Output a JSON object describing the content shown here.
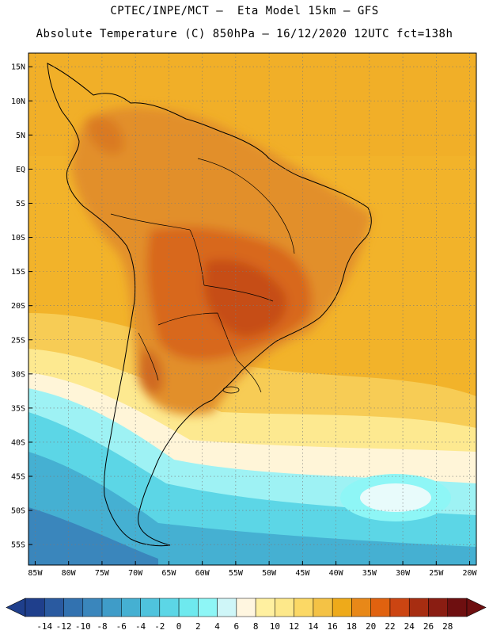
{
  "header": {
    "line1": "CPTEC/INPE/MCT —  Eta Model 15km — GFS",
    "line2": "Absolute Temperature (C) 850hPa — 16/12/2020 12UTC fct=138h"
  },
  "axes": {
    "lon_labels": [
      "85W",
      "80W",
      "75W",
      "70W",
      "65W",
      "60W",
      "55W",
      "50W",
      "45W",
      "40W",
      "35W",
      "30W",
      "25W",
      "20W"
    ],
    "lat_labels": [
      "15N",
      "10N",
      "5N",
      "EQ",
      "5S",
      "10S",
      "15S",
      "20S",
      "25S",
      "30S",
      "35S",
      "40S",
      "45S",
      "50S",
      "55S"
    ],
    "lon_range": [
      -86,
      -19
    ],
    "lat_range": [
      17,
      -58
    ]
  },
  "colorbar": {
    "labels": [
      "-14",
      "-12",
      "-10",
      "-8",
      "-6",
      "-4",
      "-2",
      "0",
      "2",
      "4",
      "6",
      "8",
      "10",
      "12",
      "14",
      "16",
      "18",
      "20",
      "22",
      "24",
      "26",
      "28"
    ],
    "colors": [
      "#1f3f8c",
      "#2a5aa0",
      "#3272b0",
      "#3a86bc",
      "#3f9cc8",
      "#45b0d2",
      "#4fc3dd",
      "#5cd6e6",
      "#6ee9ee",
      "#8ef6f6",
      "#cff6f8",
      "#fff6e0",
      "#fff0a0",
      "#fde88a",
      "#fbd865",
      "#f4c245",
      "#eeaa1a",
      "#e88818",
      "#e0620f",
      "#cc4512",
      "#a72d11",
      "#8a1d12",
      "#6e0f10"
    ]
  },
  "colors": {
    "ocean_warm": "#f2b32a",
    "land_hot": "#e08a2a",
    "core_hot": "#d4601a",
    "coast_line": "#000000"
  }
}
